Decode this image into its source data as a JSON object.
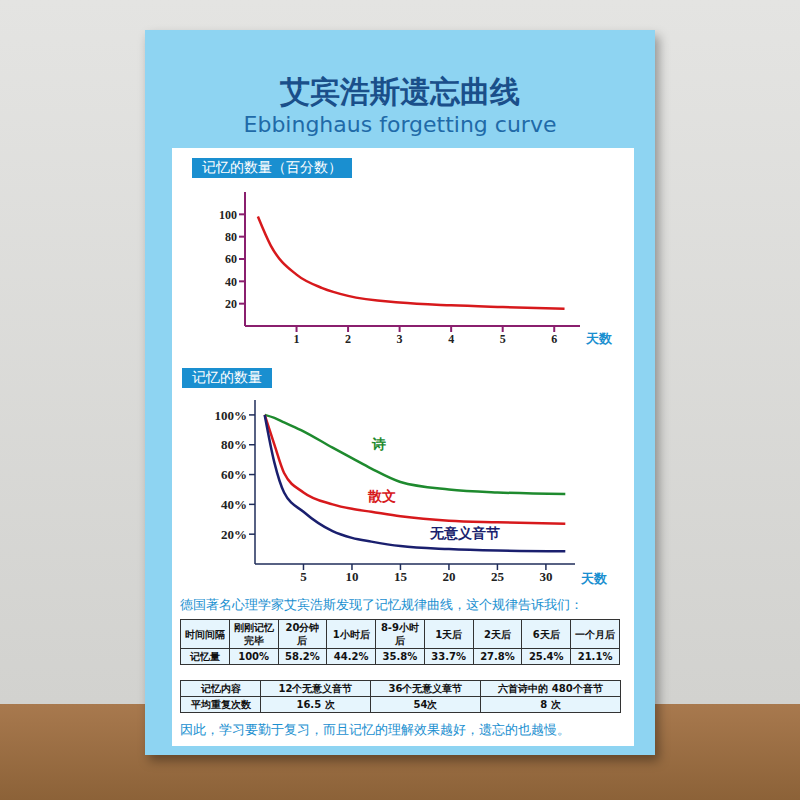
{
  "header": {
    "title": "艾宾浩斯遗忘曲线",
    "subtitle": "Ebbinghaus forgetting curve"
  },
  "chart_data": [
    {
      "type": "line",
      "title": "记忆的数量（百分数）",
      "x_label": "天数",
      "x": [
        0.25,
        0.5,
        1,
        1.5,
        2,
        3,
        4,
        5,
        6.2
      ],
      "values": [
        98,
        72,
        46,
        34,
        27,
        21,
        18.5,
        17,
        15.5
      ],
      "color": "#d7191c",
      "xlim": [
        0,
        6.5
      ],
      "xticks": [
        1,
        2,
        3,
        4,
        5,
        6
      ],
      "ylim": [
        0,
        120
      ],
      "yticks": [
        20,
        40,
        60,
        80,
        100
      ]
    },
    {
      "type": "line",
      "title": "记忆的数量",
      "x_label": "天数",
      "x": [
        1,
        2,
        3,
        5,
        8,
        10,
        12,
        15,
        20,
        25,
        32
      ],
      "series": [
        {
          "name": "诗",
          "color": "#1e8a2e",
          "values": [
            100,
            98,
            95,
            89,
            78,
            71,
            64,
            55,
            50,
            48,
            47
          ]
        },
        {
          "name": "散文",
          "color": "#d7191c",
          "values": [
            100,
            80,
            61,
            48,
            40,
            37,
            35,
            32,
            29,
            28,
            27
          ]
        },
        {
          "name": "无意义音节",
          "color": "#1a1f6e",
          "values": [
            100,
            68,
            48,
            35,
            22,
            17.5,
            15,
            12,
            10,
            9,
            8.5
          ]
        }
      ],
      "xlim": [
        0,
        33
      ],
      "xticks": [
        5,
        10,
        15,
        20,
        25,
        30
      ],
      "ylim": [
        0,
        110
      ],
      "yticks": [
        {
          "value": 20,
          "label": "20%"
        },
        {
          "value": 40,
          "label": "40%"
        },
        {
          "value": 60,
          "label": "60%"
        },
        {
          "value": 80,
          "label": "80%"
        },
        {
          "value": 100,
          "label": "100%"
        }
      ]
    }
  ],
  "intro": "德国著名心理学家艾宾浩斯发现了记忆规律曲线，这个规律告诉我们：",
  "tables": [
    {
      "rows": [
        [
          "时间间隔",
          "刚刚记忆完毕",
          "20分钟后",
          "1小时后",
          "8-9小时后",
          "1天后",
          "2天后",
          "6天后",
          "一个月后"
        ],
        [
          "记忆量",
          "100%",
          "58.2%",
          "44.2%",
          "35.8%",
          "33.7%",
          "27.8%",
          "25.4%",
          "21.1%"
        ]
      ]
    },
    {
      "rows": [
        [
          "记忆内容",
          "12个无意义音节",
          "36个无意义章节",
          "六首诗中的 480个音节"
        ],
        [
          "平均重复次数",
          "16.5 次",
          "54次",
          "8 次"
        ]
      ]
    }
  ],
  "footer": "因此，学习要勤于复习，而且记忆的理解效果越好，遗忘的也越慢。"
}
